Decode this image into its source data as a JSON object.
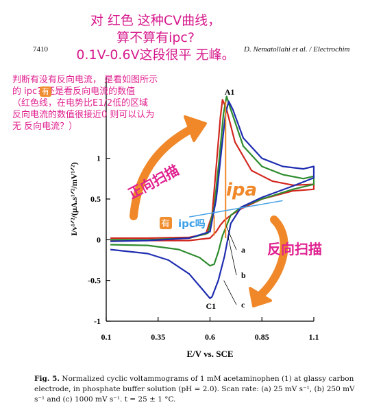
{
  "page": {
    "page_number": "7410",
    "running_head": "D. Nematollahi et al. / Electrochim"
  },
  "annotations": {
    "question_lines": [
      "对 红色 这种CV曲线，",
      "算不算有ipc?",
      "0.1V-0.6V这段很平  无峰。"
    ],
    "side_lines": [
      "判断有没有反向电流， 是看如图所示",
      "的   ipc？还是看反向电流的数值",
      "（红色线，在电势比E1/2低的区域",
      "反向电流的数值很接近0   则可以认为",
      "无 反向电流？）"
    ],
    "badge_text": "有",
    "forward_scan": "正向扫描",
    "reverse_scan": "反向扫描",
    "ipa_label": "ipa",
    "ipc_badge": "有",
    "ipc_label": "ipc吗",
    "colors": {
      "handwriting": "#e0208f",
      "arrow": "#f0882a",
      "ipc_text": "#3aa0e8",
      "ipc_line": "#4aa3e6"
    }
  },
  "caption": {
    "fig_label": "Fig. 5.",
    "text": "Normalized cyclic voltammograms of 1 mM acetaminophen (1) at glassy carbon electrode, in phosphate buffer solution (pH = 2.0). Scan rate: (a) 25 mV s⁻¹, (b) 250 mV s⁻¹ and (c) 1000 mV s⁻¹. t = 25 ± 1 °C."
  },
  "chart_data": {
    "type": "line",
    "xlabel": "E/V vs. SCE",
    "ylabel": "I/v¹ᐟ²/(μA.s¹ᐟ²/mV¹ᐟ²)",
    "xlim": [
      0.1,
      1.1
    ],
    "ylim": [
      -1,
      2
    ],
    "x_ticks": [
      0.1,
      0.35,
      0.6,
      0.85,
      1.1
    ],
    "x_tick_labels": [
      "0.1",
      "0.35",
      "0.6",
      "0.85",
      "1.1"
    ],
    "y_ticks": [
      -1,
      -0.5,
      0,
      0.5,
      1
    ],
    "y_tick_labels": [
      "-1",
      "-0.5",
      "0",
      "0.5",
      "1"
    ],
    "grid": false,
    "peak_labels": [
      "A1",
      "C1"
    ],
    "series": [
      {
        "name": "a",
        "color": "#d2271f",
        "forward": [
          [
            0.12,
            0.02
          ],
          [
            0.3,
            0.02
          ],
          [
            0.5,
            0.03
          ],
          [
            0.58,
            0.07
          ],
          [
            0.61,
            0.3
          ],
          [
            0.63,
            0.9
          ],
          [
            0.65,
            1.5
          ],
          [
            0.66,
            1.72
          ],
          [
            0.68,
            1.6
          ],
          [
            0.72,
            1.2
          ],
          [
            0.8,
            0.85
          ],
          [
            0.9,
            0.72
          ],
          [
            1.0,
            0.67
          ],
          [
            1.1,
            0.68
          ]
        ],
        "reverse": [
          [
            1.1,
            0.62
          ],
          [
            1.0,
            0.6
          ],
          [
            0.85,
            0.5
          ],
          [
            0.75,
            0.38
          ],
          [
            0.7,
            0.3
          ],
          [
            0.67,
            0.24
          ],
          [
            0.65,
            0.18
          ],
          [
            0.63,
            0.1
          ],
          [
            0.6,
            0.02
          ],
          [
            0.5,
            -0.01
          ],
          [
            0.3,
            -0.01
          ],
          [
            0.12,
            -0.01
          ]
        ]
      },
      {
        "name": "b",
        "color": "#2e8b2e",
        "forward": [
          [
            0.12,
            0.0
          ],
          [
            0.3,
            0.0
          ],
          [
            0.5,
            0.02
          ],
          [
            0.59,
            0.08
          ],
          [
            0.62,
            0.4
          ],
          [
            0.645,
            1.0
          ],
          [
            0.665,
            1.55
          ],
          [
            0.68,
            1.76
          ],
          [
            0.7,
            1.6
          ],
          [
            0.76,
            1.15
          ],
          [
            0.85,
            0.9
          ],
          [
            0.95,
            0.8
          ],
          [
            1.05,
            0.75
          ],
          [
            1.1,
            0.78
          ]
        ],
        "reverse": [
          [
            1.1,
            0.68
          ],
          [
            1.0,
            0.62
          ],
          [
            0.85,
            0.5
          ],
          [
            0.75,
            0.4
          ],
          [
            0.7,
            0.3
          ],
          [
            0.66,
            0.05
          ],
          [
            0.64,
            -0.15
          ],
          [
            0.62,
            -0.3
          ],
          [
            0.6,
            -0.32
          ],
          [
            0.55,
            -0.22
          ],
          [
            0.45,
            -0.12
          ],
          [
            0.3,
            -0.07
          ],
          [
            0.12,
            -0.06
          ]
        ]
      },
      {
        "name": "c",
        "color": "#1f2db0",
        "forward": [
          [
            0.12,
            -0.02
          ],
          [
            0.3,
            -0.01
          ],
          [
            0.5,
            0.02
          ],
          [
            0.6,
            0.1
          ],
          [
            0.63,
            0.5
          ],
          [
            0.655,
            1.1
          ],
          [
            0.675,
            1.55
          ],
          [
            0.69,
            1.7
          ],
          [
            0.71,
            1.6
          ],
          [
            0.76,
            1.25
          ],
          [
            0.85,
            1.0
          ],
          [
            0.95,
            0.9
          ],
          [
            1.05,
            0.87
          ],
          [
            1.1,
            0.9
          ]
        ],
        "reverse": [
          [
            1.1,
            0.76
          ],
          [
            1.0,
            0.66
          ],
          [
            0.85,
            0.52
          ],
          [
            0.75,
            0.4
          ],
          [
            0.7,
            0.2
          ],
          [
            0.67,
            -0.2
          ],
          [
            0.64,
            -0.5
          ],
          [
            0.61,
            -0.7
          ],
          [
            0.6,
            -0.72
          ],
          [
            0.56,
            -0.6
          ],
          [
            0.5,
            -0.42
          ],
          [
            0.4,
            -0.25
          ],
          [
            0.3,
            -0.17
          ],
          [
            0.12,
            -0.12
          ]
        ]
      }
    ]
  }
}
